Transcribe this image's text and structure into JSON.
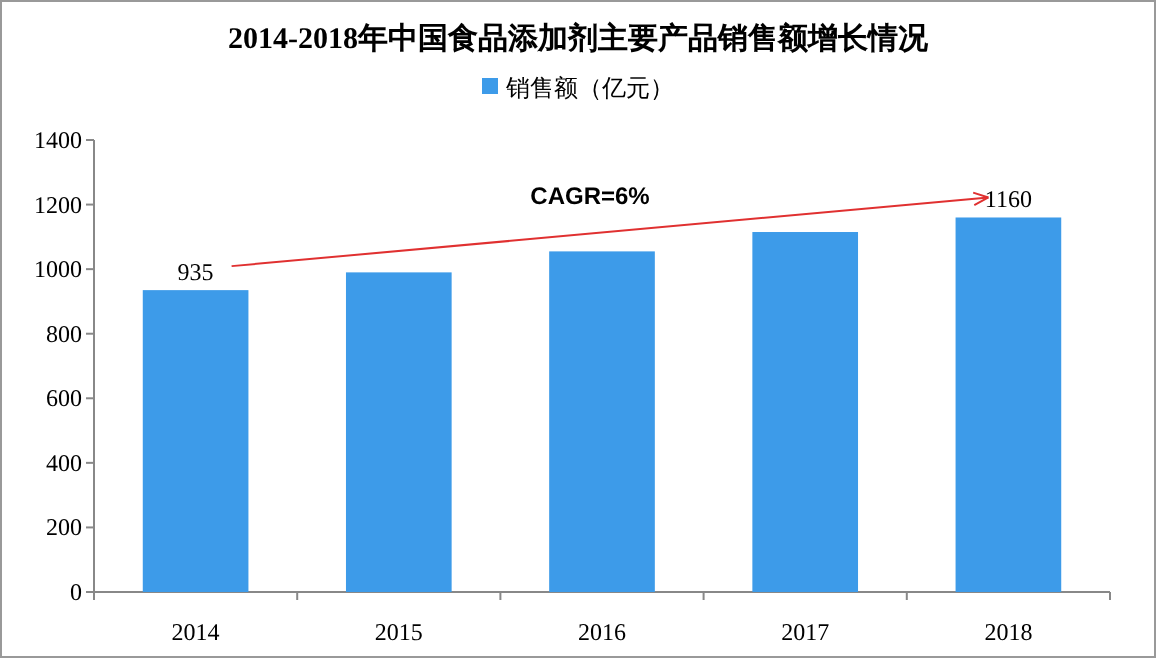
{
  "chart_data": {
    "type": "bar",
    "title": "2014-2018年中国食品添加剂主要产品销售额增长情况",
    "categories": [
      "2014",
      "2015",
      "2016",
      "2017",
      "2018"
    ],
    "series": [
      {
        "name": "销售额（亿元）",
        "color": "#3d9be9",
        "values": [
          935,
          990,
          1055,
          1115,
          1160
        ],
        "value_labels": [
          "935",
          null,
          null,
          null,
          "1160"
        ]
      }
    ],
    "ylim": [
      0,
      1400
    ],
    "yticks": [
      0,
      200,
      400,
      600,
      800,
      1000,
      1200,
      1400
    ],
    "annotations": [
      "CAGR=6%"
    ],
    "legend": "top",
    "grid": false
  }
}
